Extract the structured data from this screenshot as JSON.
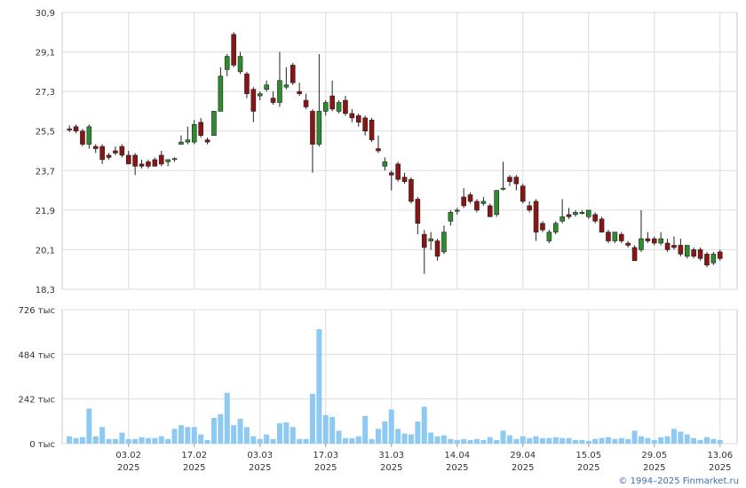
{
  "chart_data": {
    "type": "candlestick",
    "x": [
      0,
      1,
      2,
      3,
      4,
      5,
      6,
      7,
      8,
      9,
      10,
      11,
      12,
      13,
      14,
      15,
      16,
      17,
      18,
      19,
      20,
      21,
      22,
      23,
      24,
      25,
      26,
      27,
      28,
      29,
      30,
      31,
      32,
      33,
      34,
      35,
      36,
      37,
      38,
      39,
      40,
      41,
      42,
      43,
      44,
      45,
      46,
      47,
      48,
      49,
      50,
      51,
      52,
      53,
      54,
      55,
      56,
      57,
      58,
      59,
      60,
      61,
      62,
      63,
      64,
      65,
      66,
      67,
      68,
      69,
      70,
      71,
      72,
      73,
      74,
      75,
      76,
      77,
      78,
      79,
      80,
      81,
      82,
      83,
      84,
      85,
      86,
      87,
      88,
      89,
      90,
      91,
      92,
      93,
      94,
      95,
      96,
      97,
      98,
      99
    ],
    "open": [
      25.6,
      25.7,
      25.5,
      24.9,
      24.8,
      24.8,
      24.4,
      24.6,
      24.8,
      24.4,
      24.4,
      24.0,
      24.1,
      24.2,
      24.4,
      24.1,
      24.2,
      24.9,
      25.0,
      25.0,
      25.9,
      25.1,
      25.3,
      26.4,
      28.3,
      29.9,
      28.2,
      28.1,
      27.4,
      27.1,
      27.4,
      27.0,
      26.8,
      27.5,
      28.5,
      27.3,
      26.9,
      26.4,
      24.9,
      26.4,
      27.1,
      26.4,
      26.9,
      26.3,
      26.2,
      26.1,
      26.0,
      24.7,
      23.9,
      23.6,
      24.0,
      23.4,
      23.3,
      22.4,
      20.8,
      20.5,
      20.5,
      20.0,
      21.4,
      21.85,
      22.5,
      22.6,
      22.3,
      22.2,
      22.1,
      21.7,
      22.85,
      23.4,
      23.4,
      23.0,
      22.1,
      22.3,
      21.3,
      20.5,
      20.9,
      21.4,
      21.7,
      21.7,
      21.75,
      21.6,
      21.7,
      21.5,
      20.9,
      20.5,
      20.8,
      20.4,
      20.2,
      20.1,
      20.6,
      20.6,
      20.4,
      20.4,
      20.3,
      20.3,
      19.8,
      20.1,
      20.1,
      19.9,
      19.5,
      20.0
    ],
    "high": [
      25.75,
      25.8,
      25.6,
      25.8,
      24.9,
      24.9,
      24.5,
      24.8,
      24.9,
      24.6,
      24.5,
      24.2,
      24.2,
      24.3,
      24.6,
      24.2,
      24.3,
      25.3,
      25.7,
      26.0,
      26.1,
      25.2,
      26.4,
      28.4,
      29.0,
      30.0,
      29.1,
      28.2,
      27.5,
      27.3,
      27.8,
      27.3,
      29.1,
      28.4,
      28.6,
      27.7,
      27.2,
      26.5,
      29.0,
      26.9,
      27.8,
      26.9,
      27.1,
      26.5,
      26.3,
      26.2,
      26.1,
      25.3,
      24.3,
      23.7,
      24.1,
      23.6,
      23.4,
      22.5,
      21.0,
      20.9,
      20.6,
      21.2,
      21.9,
      22.0,
      22.9,
      22.7,
      22.4,
      22.5,
      22.2,
      22.8,
      24.1,
      23.5,
      23.5,
      23.1,
      22.3,
      22.4,
      21.4,
      21.0,
      21.4,
      22.4,
      22.0,
      21.9,
      21.9,
      21.9,
      21.8,
      21.6,
      21.0,
      20.9,
      20.9,
      20.5,
      20.3,
      21.9,
      20.9,
      20.7,
      20.9,
      20.6,
      20.7,
      20.6,
      20.3,
      20.2,
      20.2,
      20.0,
      20.0,
      20.1
    ],
    "low": [
      25.45,
      25.4,
      24.8,
      24.7,
      24.5,
      24.0,
      24.2,
      24.4,
      24.3,
      24.0,
      23.5,
      23.8,
      23.8,
      23.9,
      23.9,
      23.9,
      24.1,
      24.9,
      24.9,
      24.9,
      25.2,
      24.9,
      25.3,
      26.4,
      28.0,
      28.4,
      28.1,
      27.0,
      25.9,
      26.9,
      27.3,
      26.7,
      26.6,
      27.4,
      27.6,
      27.1,
      26.5,
      23.6,
      24.8,
      26.2,
      26.4,
      26.3,
      26.2,
      25.9,
      25.7,
      25.3,
      25.0,
      24.5,
      23.7,
      22.8,
      23.2,
      23.1,
      22.2,
      20.8,
      19.0,
      20.1,
      19.6,
      19.9,
      21.2,
      21.7,
      22.0,
      22.2,
      21.8,
      22.1,
      21.6,
      21.6,
      22.8,
      23.0,
      22.8,
      22.2,
      21.8,
      20.5,
      20.9,
      20.4,
      20.8,
      21.3,
      21.5,
      21.6,
      21.7,
      21.5,
      21.3,
      20.9,
      20.4,
      20.4,
      20.4,
      20.2,
      19.6,
      20.0,
      20.4,
      20.3,
      20.3,
      20.0,
      20.1,
      19.8,
      19.7,
      19.7,
      19.6,
      19.3,
      19.4,
      19.6
    ],
    "close": [
      25.55,
      25.5,
      24.9,
      25.7,
      24.7,
      24.2,
      24.3,
      24.5,
      24.4,
      24.0,
      23.9,
      23.9,
      23.9,
      23.9,
      24.0,
      24.2,
      24.25,
      25.0,
      25.1,
      25.8,
      25.3,
      25.0,
      26.4,
      28.0,
      28.9,
      28.5,
      28.9,
      27.2,
      26.4,
      27.2,
      27.6,
      26.8,
      27.8,
      27.6,
      27.7,
      27.2,
      26.6,
      24.9,
      26.4,
      26.8,
      26.5,
      26.8,
      26.3,
      26.1,
      25.9,
      25.5,
      25.1,
      24.6,
      24.1,
      23.5,
      23.3,
      23.2,
      22.3,
      21.3,
      20.2,
      20.6,
      19.8,
      20.9,
      21.8,
      21.9,
      22.1,
      22.3,
      21.9,
      22.3,
      21.6,
      22.8,
      22.9,
      23.2,
      23.1,
      22.3,
      21.9,
      20.9,
      21.0,
      20.9,
      21.3,
      21.6,
      21.6,
      21.8,
      21.8,
      21.9,
      21.4,
      20.9,
      20.5,
      20.9,
      20.5,
      20.3,
      19.6,
      20.6,
      20.5,
      20.4,
      20.6,
      20.1,
      20.2,
      19.9,
      20.3,
      19.8,
      19.7,
      19.4,
      19.9,
      19.7
    ],
    "volume": [
      40,
      30,
      35,
      190,
      40,
      90,
      25,
      25,
      60,
      25,
      25,
      35,
      30,
      30,
      40,
      25,
      80,
      100,
      90,
      90,
      50,
      20,
      140,
      160,
      275,
      100,
      135,
      90,
      40,
      25,
      50,
      25,
      110,
      115,
      90,
      25,
      25,
      270,
      620,
      155,
      145,
      70,
      30,
      30,
      40,
      150,
      25,
      80,
      120,
      185,
      80,
      55,
      50,
      120,
      200,
      60,
      40,
      45,
      25,
      20,
      25,
      20,
      25,
      20,
      35,
      20,
      70,
      45,
      25,
      40,
      30,
      40,
      30,
      30,
      35,
      30,
      30,
      20,
      20,
      15,
      25,
      30,
      35,
      25,
      30,
      25,
      70,
      40,
      30,
      20,
      35,
      40,
      80,
      65,
      50,
      30,
      20,
      35,
      25,
      20
    ],
    "up_color": "#2e8b2e",
    "down_color": "#8b1414",
    "volume_color": "#8ec9f2",
    "xlim": [
      -1.1,
      101.6
    ],
    "xticks": [
      {
        "value": 9,
        "label": "03.02\n2025"
      },
      {
        "value": 19,
        "label": "17.02\n2025"
      },
      {
        "value": 29,
        "label": "03.03\n2025"
      },
      {
        "value": 39,
        "label": "17.03\n2025"
      },
      {
        "value": 49,
        "label": "31.03\n2025"
      },
      {
        "value": 59,
        "label": "14.04\n2025"
      },
      {
        "value": 69,
        "label": "29.04\n2025"
      },
      {
        "value": 79,
        "label": "15.05\n2025"
      },
      {
        "value": 89,
        "label": "29.05\n2025"
      },
      {
        "value": 99,
        "label": "13.06\n2025"
      }
    ],
    "ylim": [
      18.3,
      30.9
    ],
    "yticks": [
      {
        "value": 18.3,
        "label": "18,3"
      },
      {
        "value": 20.1,
        "label": "20,1"
      },
      {
        "value": 21.9,
        "label": "21,9"
      },
      {
        "value": 23.7,
        "label": "23,7"
      },
      {
        "value": 25.5,
        "label": "25,5"
      },
      {
        "value": 27.3,
        "label": "27,3"
      },
      {
        "value": 29.1,
        "label": "29,1"
      },
      {
        "value": 30.9,
        "label": "30,9"
      }
    ],
    "y2lim": [
      0,
      726
    ],
    "y2ticks": [
      {
        "value": 0,
        "label": "0 тыс"
      },
      {
        "value": 242,
        "label": "242 тыс"
      },
      {
        "value": 484,
        "label": "484 тыс"
      },
      {
        "value": 726,
        "label": "726 тыс"
      }
    ],
    "grid": true,
    "footer": "© 1994–2025 Finmarket.ru"
  }
}
